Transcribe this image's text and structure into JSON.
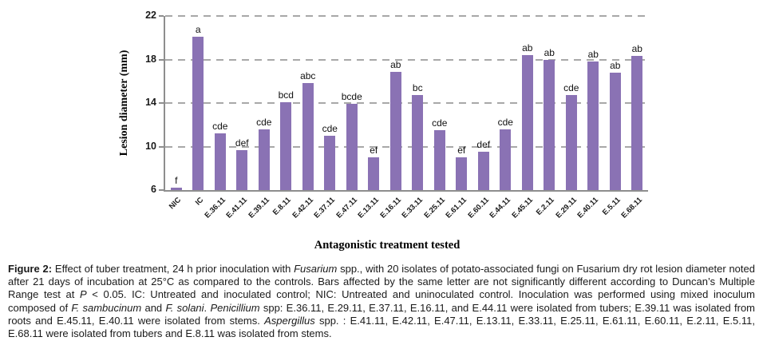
{
  "chart_data": {
    "type": "bar",
    "title": "",
    "categories": [
      "NIC",
      "IC",
      "E.36.11",
      "E.41.11",
      "E.39.11",
      "E.8.11",
      "E.42.11",
      "E.37.11",
      "E.47.11",
      "E.13.11",
      "E.16.11",
      "E.33.11",
      "E.25.11",
      "E.61.11",
      "E.60.11",
      "E.44.11",
      "E.45.11",
      "E.2.11",
      "E.29.11",
      "E.40.11",
      "E.5.11",
      "E.68.11"
    ],
    "values": [
      6.2,
      20.1,
      11.2,
      9.7,
      11.6,
      14.1,
      15.8,
      11.0,
      13.9,
      9.0,
      16.9,
      14.7,
      11.5,
      9.0,
      9.5,
      11.6,
      18.4,
      18.0,
      14.7,
      17.8,
      16.8,
      18.3
    ],
    "bar_labels": [
      "f",
      "a",
      "cde",
      "def",
      "cde",
      "bcd",
      "abc",
      "cde",
      "bcde",
      "ef",
      "ab",
      "bc",
      "cde",
      "ef",
      "def",
      "cde",
      "ab",
      "ab",
      "cde",
      "ab",
      "ab",
      "ab"
    ],
    "xlabel": "Antagonistic treatment tested",
    "ylabel": "Lesion diameter (mm)",
    "ylim": [
      6,
      22
    ],
    "yticks": [
      22,
      18,
      14,
      10,
      6
    ],
    "grid": "horizontal-dashed",
    "legend": "none",
    "colors": {
      "bar": "#8a72b4",
      "gridline": "#a8a8a8",
      "axis": "#8e8e8e",
      "text": "#1a1a1a"
    }
  },
  "caption": {
    "segments": [
      {
        "text": "Figure 2:",
        "bold": true
      },
      {
        "text": " Effect of tuber treatment, 24 h prior inoculation with "
      },
      {
        "text": "Fusarium",
        "italic": true
      },
      {
        "text": " spp., with 20 isolates of potato-associated fungi on Fusarium dry rot lesion diameter noted after 21 days of incubation at 25°C as compared to the controls. Bars affected by the same letter are not significantly different according to Duncan’s Multiple Range test at "
      },
      {
        "text": "P",
        "italic": true
      },
      {
        "text": " < 0.05. IC: Untreated and inoculated control; NIC: Untreated and uninoculated control. Inoculation was performed using mixed inoculum composed of "
      },
      {
        "text": "F. sambucinum",
        "italic": true
      },
      {
        "text": " and "
      },
      {
        "text": "F. solani",
        "italic": true
      },
      {
        "text": ". "
      },
      {
        "text": "Penicillium",
        "italic": true
      },
      {
        "text": " spp: E.36.11, E.29.11, E.37.11, E.16.11, and E.44.11 were isolated from tubers; E.39.11 was isolated from roots and E.45.11, E.40.11 were isolated from stems. "
      },
      {
        "text": "Aspergillus",
        "italic": true
      },
      {
        "text": " spp. : E.41.11, E.42.11, E.47.11, E.13.11, E.33.11, E.25.11, E.61.11, E.60.11, E.2.11, E.5.11, E.68.11 were isolated from tubers and E.8.11 was isolated from stems."
      }
    ]
  }
}
